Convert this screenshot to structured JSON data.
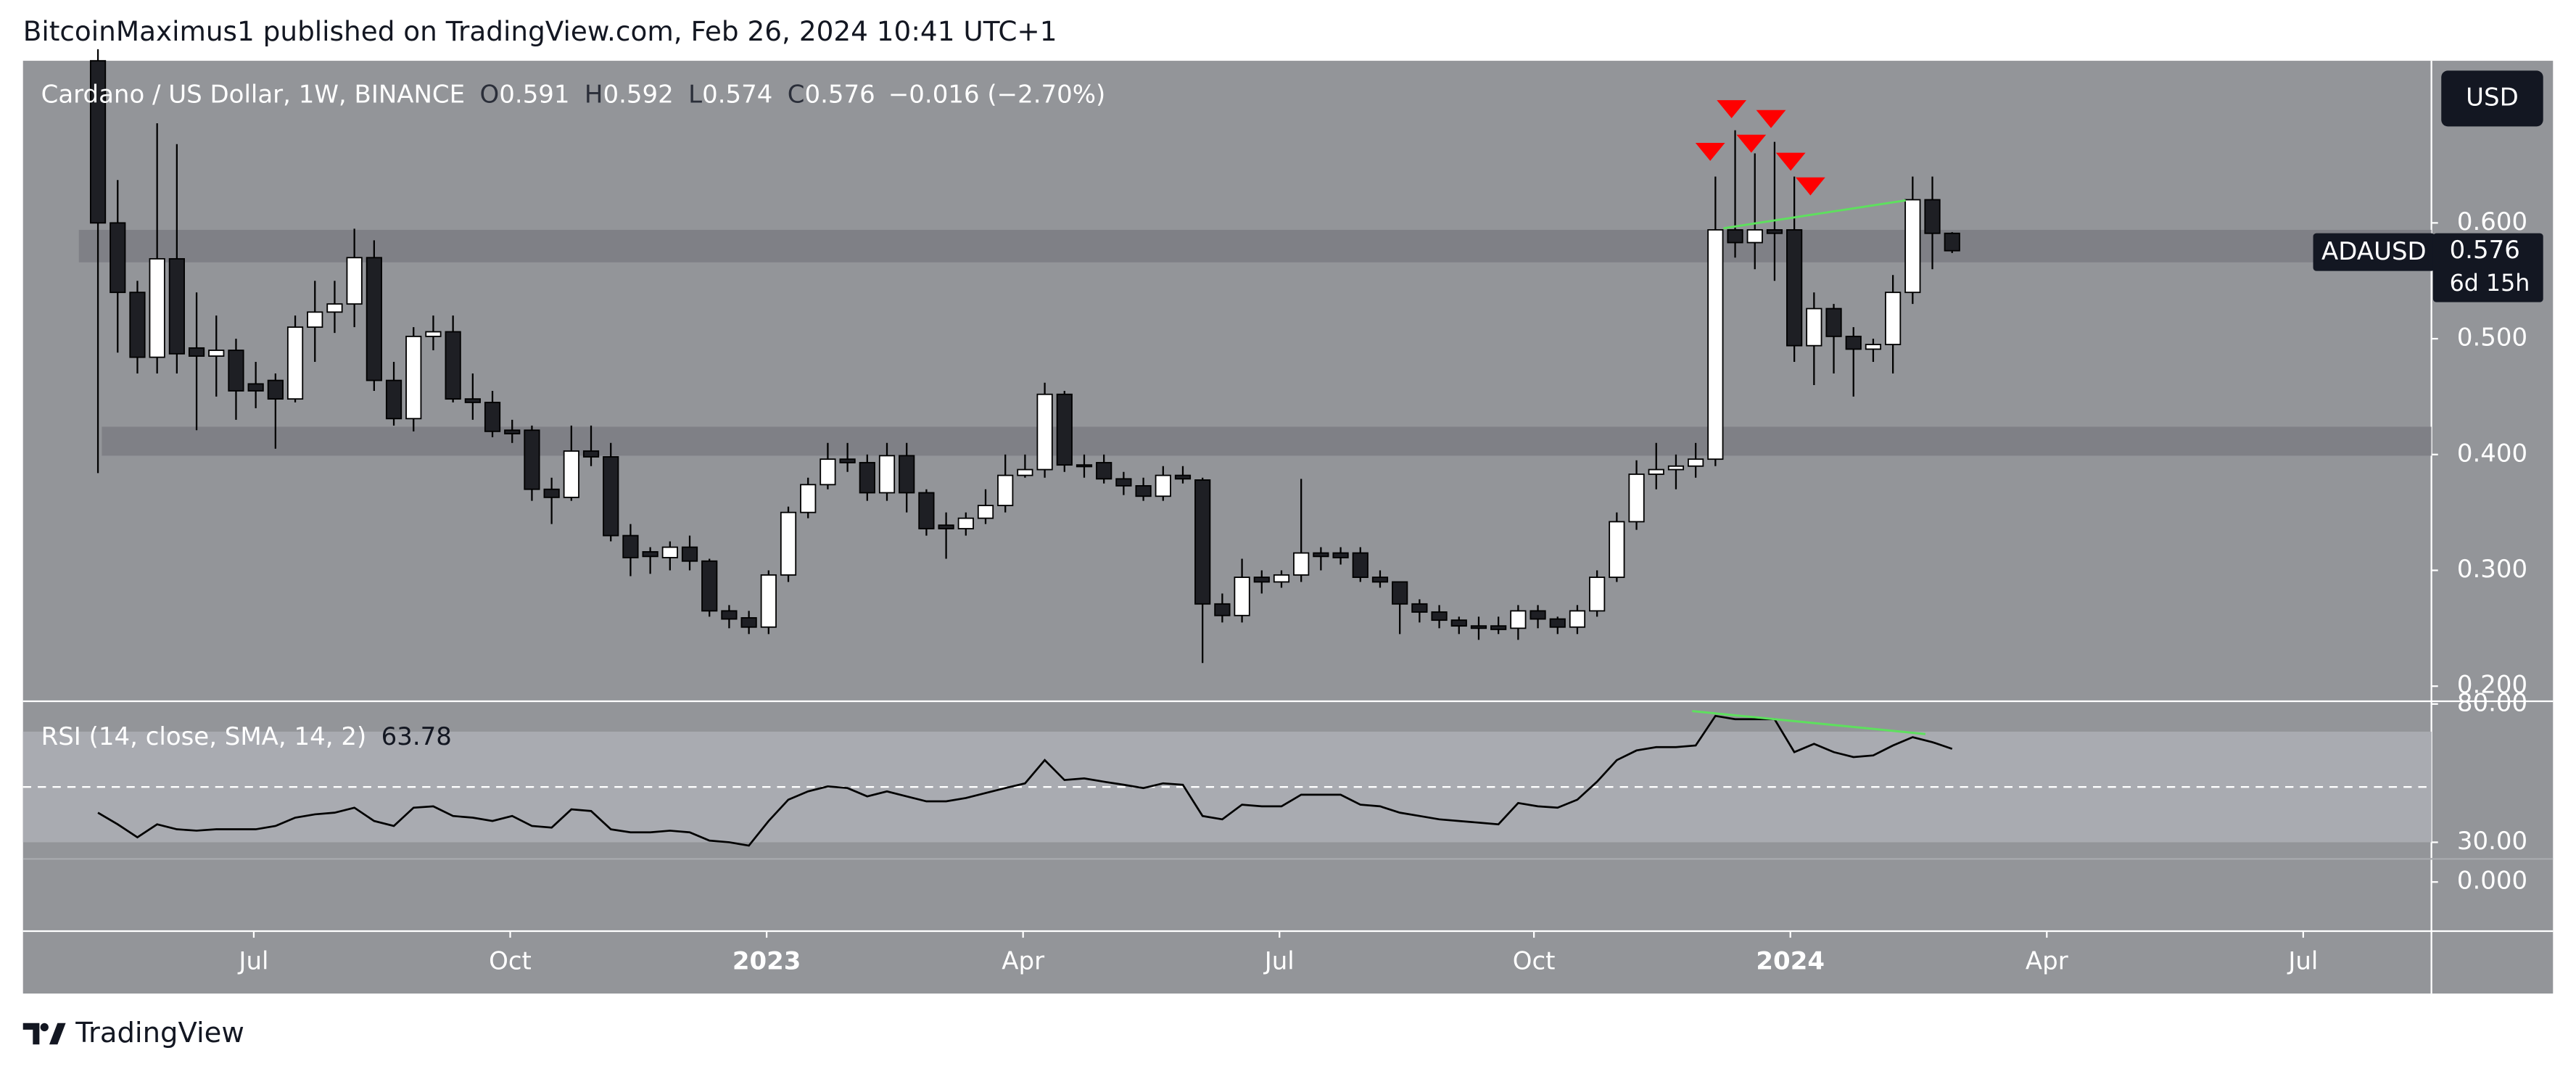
{
  "header": "BitcoinMaximus1 published on TradingView.com, Feb 26, 2024 10:41 UTC+1",
  "footer": "TradingView",
  "chart_data": {
    "type": "candlestick",
    "title": "Cardano / US Dollar, 1W, BINANCE",
    "ohlc_letters": [
      "O",
      "H",
      "L",
      "C"
    ],
    "change_label": "−0.016 (−2.70%)",
    "currency_button": "USD",
    "symbol_tag": "ADAUSD",
    "countdown": "6d 15h",
    "up_color": "#ffffff",
    "down_color": "#1e1f24",
    "open": [
      0.74,
      0.6,
      0.54,
      0.484,
      0.569,
      0.492,
      0.485,
      0.49,
      0.461,
      0.464,
      0.448,
      0.51,
      0.523,
      0.53,
      0.57,
      0.464,
      0.431,
      0.502,
      0.506,
      0.448,
      0.445,
      0.421,
      0.421,
      0.37,
      0.363,
      0.403,
      0.398,
      0.33,
      0.316,
      0.311,
      0.32,
      0.308,
      0.265,
      0.259,
      0.251,
      0.296,
      0.35,
      0.374,
      0.396,
      0.393,
      0.367,
      0.399,
      0.367,
      0.339,
      0.336,
      0.345,
      0.356,
      0.382,
      0.387,
      0.452,
      0.391,
      0.393,
      0.379,
      0.373,
      0.364,
      0.382,
      0.378,
      0.271,
      0.261,
      0.294,
      0.29,
      0.296,
      0.315,
      0.315,
      0.315,
      0.294,
      0.29,
      0.271,
      0.264,
      0.257,
      0.252,
      0.252,
      0.25,
      0.265,
      0.258,
      0.251,
      0.265,
      0.294,
      0.342,
      0.383,
      0.387,
      0.39,
      0.396,
      0.594,
      0.583,
      0.594,
      0.594,
      0.494,
      0.526,
      0.502,
      0.491,
      0.495,
      0.54,
      0.62,
      0.591
    ],
    "high": [
      0.75,
      0.637,
      0.55,
      0.686,
      0.668,
      0.54,
      0.52,
      0.5,
      0.48,
      0.47,
      0.52,
      0.55,
      0.55,
      0.595,
      0.585,
      0.48,
      0.51,
      0.52,
      0.52,
      0.47,
      0.455,
      0.43,
      0.425,
      0.38,
      0.425,
      0.425,
      0.41,
      0.34,
      0.32,
      0.325,
      0.33,
      0.31,
      0.27,
      0.265,
      0.3,
      0.355,
      0.38,
      0.41,
      0.41,
      0.4,
      0.41,
      0.41,
      0.37,
      0.35,
      0.35,
      0.37,
      0.4,
      0.4,
      0.462,
      0.455,
      0.4,
      0.4,
      0.385,
      0.38,
      0.39,
      0.39,
      0.38,
      0.28,
      0.31,
      0.3,
      0.3,
      0.379,
      0.32,
      0.32,
      0.32,
      0.3,
      0.29,
      0.275,
      0.27,
      0.26,
      0.26,
      0.26,
      0.27,
      0.27,
      0.26,
      0.27,
      0.3,
      0.35,
      0.395,
      0.41,
      0.4,
      0.41,
      0.64,
      0.68,
      0.66,
      0.67,
      0.64,
      0.54,
      0.53,
      0.51,
      0.5,
      0.555,
      0.64,
      0.64,
      0.592
    ],
    "low": [
      0.384,
      0.488,
      0.47,
      0.47,
      0.47,
      0.421,
      0.45,
      0.43,
      0.44,
      0.405,
      0.445,
      0.48,
      0.505,
      0.51,
      0.455,
      0.425,
      0.42,
      0.49,
      0.445,
      0.43,
      0.415,
      0.41,
      0.36,
      0.34,
      0.36,
      0.39,
      0.325,
      0.295,
      0.297,
      0.3,
      0.3,
      0.26,
      0.25,
      0.245,
      0.245,
      0.29,
      0.345,
      0.37,
      0.385,
      0.36,
      0.36,
      0.35,
      0.33,
      0.31,
      0.33,
      0.34,
      0.35,
      0.38,
      0.38,
      0.385,
      0.38,
      0.375,
      0.365,
      0.36,
      0.36,
      0.375,
      0.22,
      0.255,
      0.255,
      0.28,
      0.285,
      0.29,
      0.3,
      0.305,
      0.29,
      0.285,
      0.245,
      0.255,
      0.25,
      0.245,
      0.24,
      0.245,
      0.24,
      0.25,
      0.245,
      0.245,
      0.26,
      0.29,
      0.335,
      0.37,
      0.37,
      0.38,
      0.39,
      0.57,
      0.56,
      0.55,
      0.48,
      0.46,
      0.47,
      0.45,
      0.48,
      0.47,
      0.53,
      0.56,
      0.574
    ],
    "close": [
      0.6,
      0.54,
      0.484,
      0.569,
      0.487,
      0.485,
      0.49,
      0.455,
      0.455,
      0.448,
      0.51,
      0.523,
      0.53,
      0.57,
      0.464,
      0.431,
      0.502,
      0.506,
      0.448,
      0.445,
      0.42,
      0.418,
      0.37,
      0.363,
      0.403,
      0.398,
      0.33,
      0.311,
      0.312,
      0.32,
      0.308,
      0.265,
      0.258,
      0.251,
      0.296,
      0.35,
      0.374,
      0.396,
      0.393,
      0.367,
      0.399,
      0.367,
      0.336,
      0.336,
      0.345,
      0.356,
      0.382,
      0.387,
      0.452,
      0.391,
      0.39,
      0.379,
      0.373,
      0.364,
      0.382,
      0.379,
      0.271,
      0.261,
      0.294,
      0.29,
      0.296,
      0.315,
      0.312,
      0.311,
      0.294,
      0.29,
      0.271,
      0.264,
      0.257,
      0.252,
      0.25,
      0.249,
      0.265,
      0.258,
      0.251,
      0.265,
      0.294,
      0.342,
      0.383,
      0.387,
      0.39,
      0.396,
      0.594,
      0.583,
      0.594,
      0.591,
      0.494,
      0.526,
      0.502,
      0.491,
      0.495,
      0.54,
      0.62,
      0.591,
      0.576
    ],
    "xlim": [
      -3.8,
      118.3
    ],
    "xticks": [
      {
        "value": 7.9,
        "label": "Jul"
      },
      {
        "value": 20.9,
        "label": "Oct"
      },
      {
        "value": 33.9,
        "label": "2023",
        "bold": true
      },
      {
        "value": 46.9,
        "label": "Apr"
      },
      {
        "value": 59.9,
        "label": "Jul"
      },
      {
        "value": 72.8,
        "label": "Oct"
      },
      {
        "value": 85.8,
        "label": "2024",
        "bold": true
      },
      {
        "value": 98.8,
        "label": "Apr"
      },
      {
        "value": 111.8,
        "label": "Jul"
      }
    ],
    "ylim": [
      0.187,
      0.74
    ],
    "yticks": [
      {
        "value": 0.6,
        "label": "0.600"
      },
      {
        "value": 0.5,
        "label": "0.500"
      },
      {
        "value": 0.4,
        "label": "0.400"
      },
      {
        "value": 0.3,
        "label": "0.300"
      },
      {
        "value": 0.2,
        "label": "0.200"
      }
    ],
    "zones": [
      [
        0.566,
        0.594
      ],
      [
        0.399,
        0.424
      ]
    ],
    "rsi": {
      "label": "RSI (14, close, SMA, 14, 2)",
      "color": "#000000",
      "values": [
        40.7,
        36.5,
        31.8,
        36.5,
        34.7,
        34.2,
        34.7,
        34.7,
        34.7,
        35.9,
        38.9,
        40.1,
        40.7,
        42.5,
        37.7,
        35.9,
        42.5,
        43.0,
        39.5,
        38.9,
        37.7,
        39.5,
        35.9,
        35.3,
        41.9,
        41.3,
        34.7,
        33.6,
        33.6,
        34.2,
        33.6,
        30.6,
        30.0,
        28.8,
        37.7,
        45.4,
        48.4,
        50.2,
        49.6,
        46.6,
        48.4,
        46.6,
        44.8,
        44.8,
        46.0,
        47.8,
        49.6,
        51.3,
        59.7,
        52.5,
        53.1,
        51.9,
        50.8,
        49.6,
        51.3,
        50.8,
        39.5,
        38.3,
        43.6,
        43.0,
        43.0,
        47.2,
        47.2,
        47.2,
        43.6,
        43.0,
        40.7,
        39.5,
        38.3,
        37.7,
        37.1,
        36.5,
        44.2,
        43.0,
        42.5,
        45.4,
        51.9,
        59.7,
        63.2,
        64.4,
        64.4,
        65.0,
        75.7,
        74.5,
        74.5,
        74.5,
        62.6,
        65.6,
        62.6,
        60.8,
        61.4,
        65.0,
        68.0,
        66.2,
        63.78
      ],
      "ylim": [
        24,
        81
      ],
      "yticks": [
        {
          "value": 80,
          "label": "80.00"
        },
        {
          "value": 30,
          "label": "30.00"
        }
      ],
      "band": [
        30,
        70
      ],
      "midline": 50
    },
    "lower_pane": {
      "yticks": [
        {
          "value": 0,
          "label": "0.000"
        }
      ]
    }
  }
}
